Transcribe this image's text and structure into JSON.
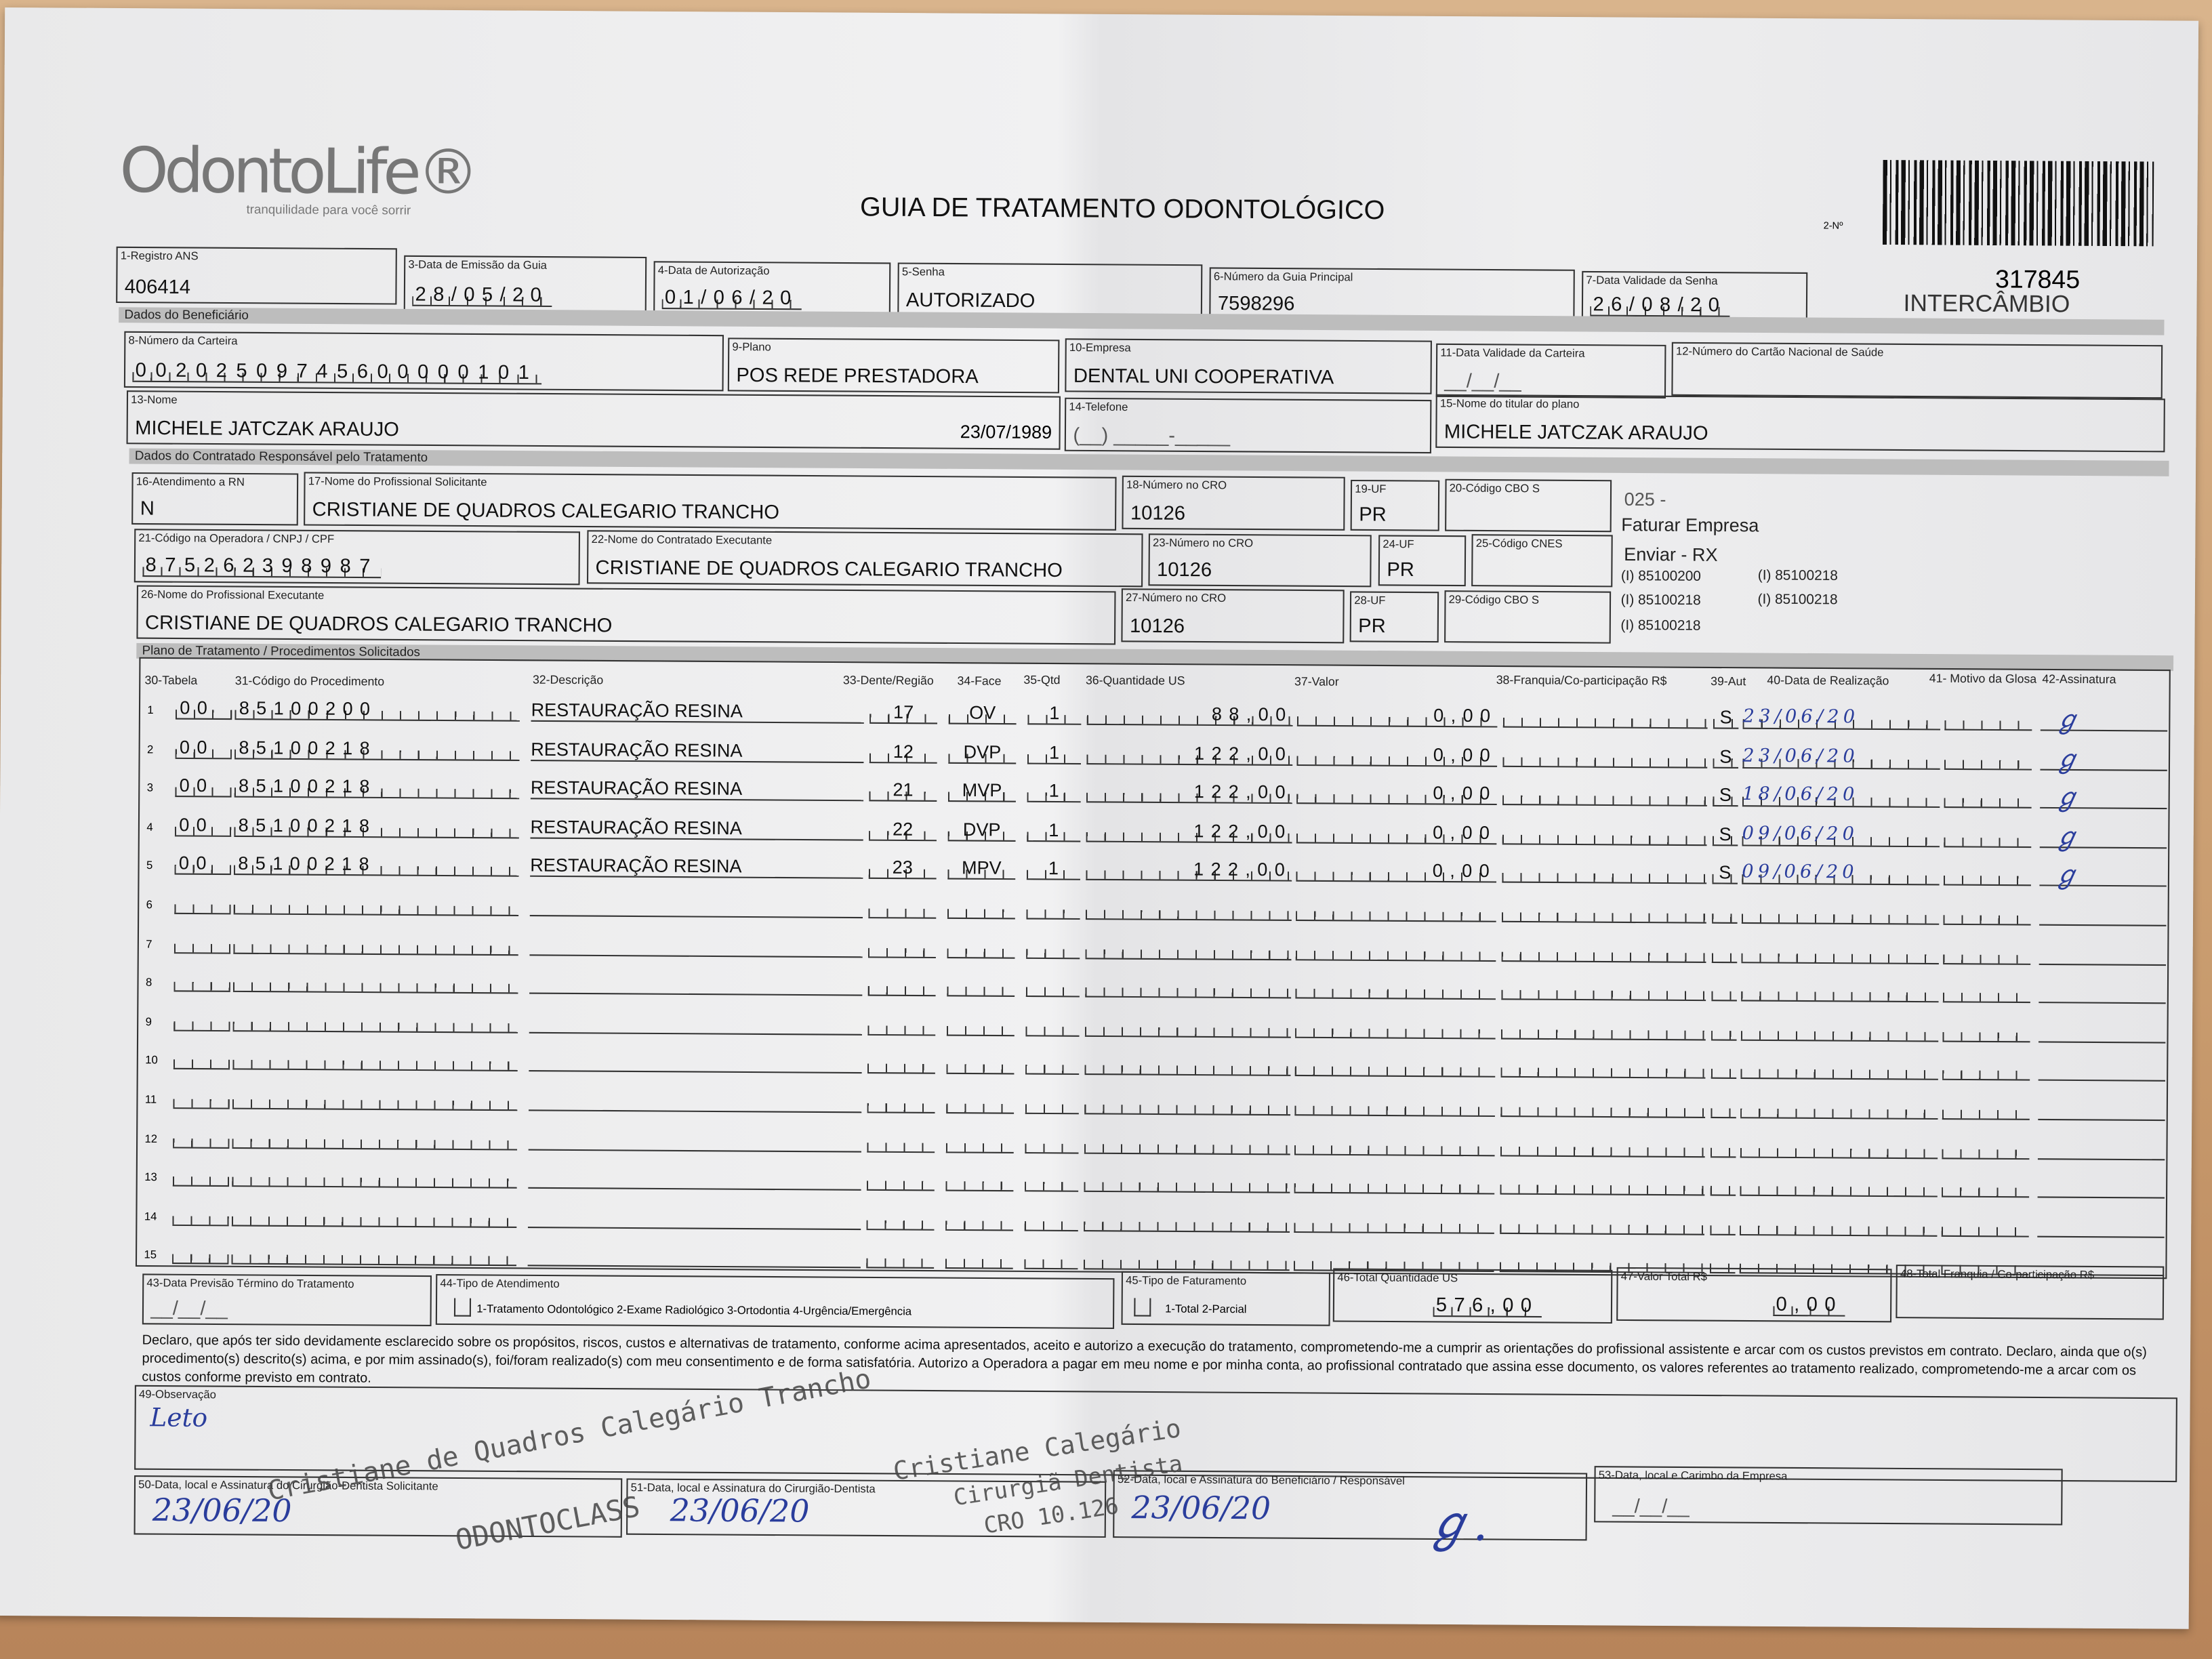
{
  "header": {
    "logo": "OdontoLife®",
    "tagline": "tranquilidade para você sorrir",
    "title": "GUIA DE TRATAMENTO ODONTOLÓGICO",
    "guide_number_label": "2-Nº",
    "guide_number": "317845",
    "guide_type": "INTERCÂMBIO"
  },
  "fields": {
    "f1": {
      "label": "1-Registro ANS",
      "value": "406414"
    },
    "f3": {
      "label": "3-Data de Emissão da Guia",
      "value": "28/05/20"
    },
    "f4": {
      "label": "4-Data de Autorização",
      "value": "01/06/20"
    },
    "f5": {
      "label": "5-Senha",
      "value": "AUTORIZADO"
    },
    "f6": {
      "label": "6-Número da Guia Principal",
      "value": "7598296"
    },
    "f7": {
      "label": "7-Data Validade da Senha",
      "value": "26/08/20"
    },
    "f8": {
      "label": "8-Número da Carteira",
      "value": "00202509745600000101"
    },
    "f9": {
      "label": "9-Plano",
      "value": "POS REDE PRESTADORA"
    },
    "f10": {
      "label": "10-Empresa",
      "value": "DENTAL UNI  COOPERATIVA"
    },
    "f11": {
      "label": "11-Data Validade da Carteira",
      "value": "__/__/__"
    },
    "f12": {
      "label": "12-Número do Cartão Nacional de Saúde",
      "value": ""
    },
    "f13": {
      "label": "13-Nome",
      "value": "MICHELE JATCZAK ARAUJO",
      "birth": "23/07/1989"
    },
    "f14": {
      "label": "14-Telefone",
      "value": "(__) _____-_____"
    },
    "f15": {
      "label": "15-Nome do titular do plano",
      "value": "MICHELE JATCZAK ARAUJO"
    },
    "f16": {
      "label": "16-Atendimento a RN",
      "value": "N"
    },
    "f17": {
      "label": "17-Nome do Profissional Solicitante",
      "value": "CRISTIANE DE QUADROS CALEGARIO TRANCHO"
    },
    "f18": {
      "label": "18-Número no CRO",
      "value": "10126"
    },
    "f19": {
      "label": "19-UF",
      "value": "PR"
    },
    "f20": {
      "label": "20-Código CBO S",
      "value": ""
    },
    "f21": {
      "label": "21-Código na Operadora / CNPJ / CPF",
      "value": "875262398987"
    },
    "f22": {
      "label": "22-Nome do Contratado Executante",
      "value": "CRISTIANE DE QUADROS CALEGARIO TRANCHO"
    },
    "f23": {
      "label": "23-Número no CRO",
      "value": "10126"
    },
    "f24": {
      "label": "24-UF",
      "value": "PR"
    },
    "f25": {
      "label": "25-Código CNES",
      "value": ""
    },
    "f26": {
      "label": "26-Nome do Profissional Executante",
      "value": "CRISTIANE DE QUADROS CALEGARIO TRANCHO"
    },
    "f27": {
      "label": "27-Número no CRO",
      "value": "10126"
    },
    "f28": {
      "label": "28-UF",
      "value": "PR"
    },
    "f29": {
      "label": "29-Código CBO S",
      "value": ""
    }
  },
  "sections": {
    "beneficiary": "Dados do Beneficiário",
    "contractor": "Dados do Contratado Responsável pelo Tratamento",
    "plan": "Plano de Tratamento / Procedimentos Solicitados"
  },
  "notes": [
    "025 -",
    "Faturar Empresa",
    "Enviar - RX",
    "(I) 85100200",
    "(I) 85100218",
    "(I) 85100218",
    "(I) 85100218",
    "(I) 85100218"
  ],
  "columns": [
    "30-Tabela",
    "31-Código do Procedimento",
    "32-Descrição",
    "33-Dente/Região",
    "34-Face",
    "35-Qtd",
    "36-Quantidade US",
    "37-Valor",
    "38-Franquia/Co-participação R$",
    "39-Aut",
    "40-Data de Realização",
    "41- Motivo da Glosa",
    "42-Assinatura"
  ],
  "procedures": [
    {
      "n": "1",
      "tabela": "00",
      "codigo": "85100200",
      "descricao": "RESTAURAÇÃO RESINA",
      "dente": "17",
      "face": "OV",
      "qtd": "1",
      "qtd_us": "88,00",
      "valor": "0,00",
      "franquia": "",
      "aut": "S",
      "data": "23/06/20"
    },
    {
      "n": "2",
      "tabela": "00",
      "codigo": "85100218",
      "descricao": "RESTAURAÇÃO RESINA",
      "dente": "12",
      "face": "DVP",
      "qtd": "1",
      "qtd_us": "122,00",
      "valor": "0,00",
      "franquia": "",
      "aut": "S",
      "data": "23/06/20"
    },
    {
      "n": "3",
      "tabela": "00",
      "codigo": "85100218",
      "descricao": "RESTAURAÇÃO RESINA",
      "dente": "21",
      "face": "MVP",
      "qtd": "1",
      "qtd_us": "122,00",
      "valor": "0,00",
      "franquia": "",
      "aut": "S",
      "data": "18/06/20"
    },
    {
      "n": "4",
      "tabela": "00",
      "codigo": "85100218",
      "descricao": "RESTAURAÇÃO RESINA",
      "dente": "22",
      "face": "DVP",
      "qtd": "1",
      "qtd_us": "122,00",
      "valor": "0,00",
      "franquia": "",
      "aut": "S",
      "data": "09/06/20"
    },
    {
      "n": "5",
      "tabela": "00",
      "codigo": "85100218",
      "descricao": "RESTAURAÇÃO RESINA",
      "dente": "23",
      "face": "MPV",
      "qtd": "1",
      "qtd_us": "122,00",
      "valor": "0,00",
      "franquia": "",
      "aut": "S",
      "data": "09/06/20"
    },
    {
      "n": "6"
    },
    {
      "n": "7"
    },
    {
      "n": "8"
    },
    {
      "n": "9"
    },
    {
      "n": "10"
    },
    {
      "n": "11"
    },
    {
      "n": "12"
    },
    {
      "n": "13"
    },
    {
      "n": "14"
    },
    {
      "n": "15"
    }
  ],
  "totals": {
    "f43": {
      "label": "43-Data Previsão Término do Tratamento",
      "value": "__/__/__"
    },
    "f44": {
      "label": "44-Tipo de Atendimento",
      "options": "1-Tratamento Odontológico  2-Exame Radiológico  3-Ortodontia  4-Urgência/Emergência"
    },
    "f45": {
      "label": "45-Tipo de Faturamento",
      "options": "1-Total  2-Parcial"
    },
    "f46": {
      "label": "46-Total Quantidade US",
      "value": "576,00"
    },
    "f47": {
      "label": "47-Valor Total R$",
      "value": "0,00"
    },
    "f48": {
      "label": "48-Total Franquia / Co-participação R$",
      "value": ""
    }
  },
  "declaration": "Declaro, que após ter sido devidamente esclarecido sobre os propósitos, riscos, custos e alternativas de tratamento, conforme acima apresentados, aceito e autorizo a execução do tratamento, comprometendo-me a cumprir as orientações do profissional assistente e arcar com os custos previstos em contrato. Declaro, ainda que o(s) procedimento(s) descrito(s) acima, e por mim assinado(s), foi/foram realizado(s) com meu consentimento e de forma satisfatória. Autorizo a Operadora a pagar em meu nome e por minha conta, ao profissional contratado que assina esse documento, os valores referentes ao tratamento realizado, comprometendo-me a arcar com os custos conforme previsto em contrato.",
  "footer": {
    "f49": {
      "label": "49-Observação",
      "handwritten": "Leto"
    },
    "f50": {
      "label": "50-Data, local e Assinatura do Cirurgião-Dentista Solicitante",
      "handwritten": "23/06/20"
    },
    "f51": {
      "label": "51-Data, local e Assinatura do Cirurgião-Dentista",
      "handwritten": "23/06/20"
    },
    "f52": {
      "label": "52-Data, local e Assinatura do Beneficiário / Responsável",
      "handwritten": "23/06/20"
    },
    "f53": {
      "label": "53-Data, local e Carimbo da Empresa",
      "value": "__/__/__"
    },
    "stamp1": "Cristiane de Quadros Calegário Trancho",
    "stamp1b": "ODONTOCLASS",
    "stamp2": "Cristiane Calegário",
    "stamp2b": "Cirurgiã Dentista",
    "stamp2c": "CRO 10.126"
  },
  "colors": {
    "ink": "#2a3d9c",
    "print": "#111111",
    "band": "#bdbdbd"
  }
}
